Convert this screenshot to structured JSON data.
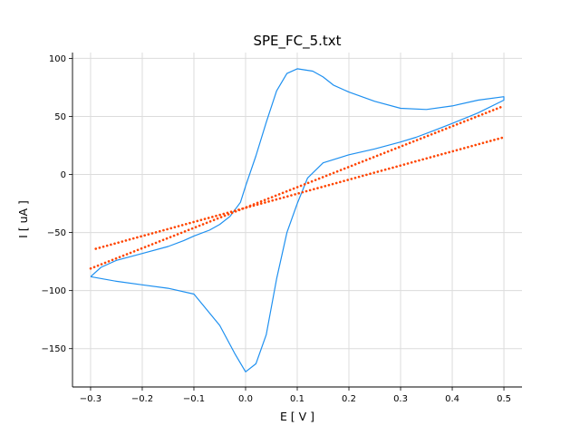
{
  "chart_data": {
    "type": "line",
    "title": "SPE_FC_5.txt",
    "xlabel": "E [ V ]",
    "ylabel": "I [ uA ]",
    "xlim": [
      -0.335,
      0.535
    ],
    "ylim": [
      -183,
      105
    ],
    "xticks": [
      -0.3,
      -0.2,
      -0.1,
      0.0,
      0.1,
      0.2,
      0.3,
      0.4,
      0.5
    ],
    "xtick_labels": [
      "−0.3",
      "−0.2",
      "−0.1",
      "0.0",
      "0.1",
      "0.2",
      "0.3",
      "0.4",
      "0.5"
    ],
    "yticks": [
      -150,
      -100,
      -50,
      0,
      50,
      100
    ],
    "ytick_labels": [
      "−150",
      "−100",
      "−50",
      "0",
      "50",
      "100"
    ],
    "grid": true,
    "legend": "none",
    "series": [
      {
        "style": "solid",
        "color": "#1e90f0",
        "x": [
          -0.3,
          -0.25,
          -0.2,
          -0.15,
          -0.1,
          -0.05,
          -0.02,
          0.0,
          0.02,
          0.04,
          0.06,
          0.08,
          0.1,
          0.12,
          0.15,
          0.2,
          0.25,
          0.3,
          0.33,
          0.36,
          0.4,
          0.45,
          0.5,
          0.5,
          0.45,
          0.4,
          0.35,
          0.3,
          0.25,
          0.2,
          0.17,
          0.15,
          0.13,
          0.1,
          0.08,
          0.06,
          0.04,
          0.02,
          0.0,
          -0.01,
          -0.03,
          -0.05,
          -0.07,
          -0.1,
          -0.12,
          -0.15,
          -0.2,
          -0.25,
          -0.28,
          -0.3
        ],
        "y": [
          -88,
          -92,
          -95,
          -98,
          -103,
          -130,
          -155,
          -170,
          -163,
          -138,
          -90,
          -50,
          -25,
          -3,
          10,
          17,
          22,
          28,
          32,
          37,
          44,
          53,
          64,
          67,
          64,
          59,
          56,
          57,
          63,
          71,
          77,
          84,
          89,
          91,
          87,
          72,
          45,
          16,
          -10,
          -24,
          -36,
          -43,
          -48,
          -53,
          -57,
          -62,
          -68,
          -74,
          -80,
          -88
        ]
      },
      {
        "style": "dotted",
        "color": "#ff4500",
        "x": [
          -0.29,
          0.5
        ],
        "y": [
          -64,
          32
        ]
      },
      {
        "style": "dotted",
        "color": "#ff4500",
        "x": [
          -0.3,
          0.5
        ],
        "y": [
          -81,
          59
        ]
      }
    ]
  }
}
